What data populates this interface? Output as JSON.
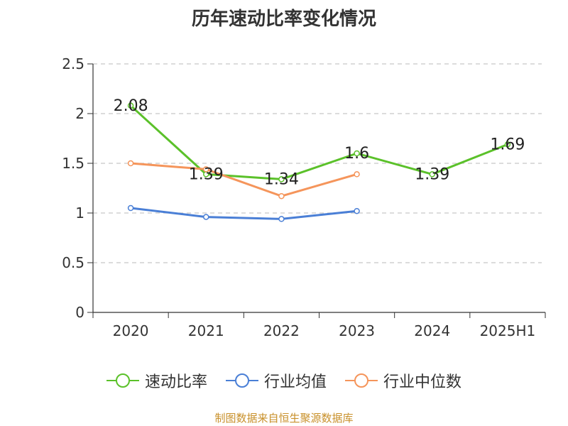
{
  "title": "历年速动比率变化情况",
  "source": "制图数据来自恒生聚源数据库",
  "colors": {
    "source_text": "#c8902a"
  },
  "chart_data": {
    "type": "line",
    "categories": [
      "2020",
      "2021",
      "2022",
      "2023",
      "2024",
      "2025H1"
    ],
    "ylim": [
      0,
      2.5
    ],
    "yticks": [
      "0",
      "0.5",
      "1",
      "1.5",
      "2",
      "2.5"
    ],
    "grid": true,
    "legend_position": "bottom",
    "series": [
      {
        "name": "速动比率",
        "color": "#5bc12a",
        "values": [
          2.08,
          1.39,
          1.34,
          1.6,
          1.39,
          1.69
        ],
        "labels": [
          "2.08",
          "1.39",
          "1.34",
          "1.6",
          "1.39",
          "1.69"
        ]
      },
      {
        "name": "行业均值",
        "color": "#4a7fd6",
        "values": [
          1.05,
          0.96,
          0.94,
          1.02,
          null,
          null
        ]
      },
      {
        "name": "行业中位数",
        "color": "#f5955b",
        "values": [
          1.5,
          1.44,
          1.17,
          1.39,
          null,
          null
        ]
      }
    ]
  }
}
